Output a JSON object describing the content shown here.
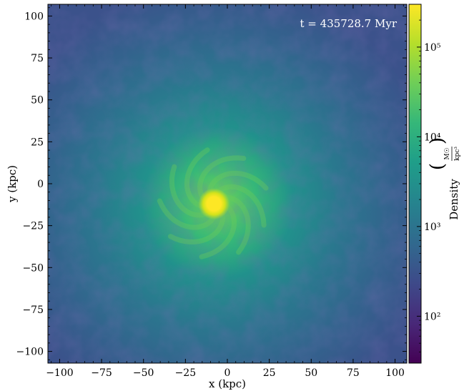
{
  "chart_data": {
    "type": "heatmap",
    "annotation": "t = 435728.7 Myr",
    "xlabel": "x  (kpc)",
    "ylabel": "y  (kpc)",
    "xlim": [
      -107,
      107
    ],
    "ylim": [
      -107,
      107
    ],
    "xticks": [
      -100,
      -75,
      -50,
      -25,
      0,
      25,
      50,
      75,
      100
    ],
    "yticks": [
      -100,
      -75,
      -50,
      -25,
      0,
      25,
      50,
      75,
      100
    ],
    "xtick_labels": [
      "−100",
      "−75",
      "−50",
      "−25",
      "0",
      "25",
      "50",
      "75",
      "100"
    ],
    "ytick_labels": [
      "−100",
      "−75",
      "−50",
      "−25",
      "0",
      "25",
      "50",
      "75",
      "100"
    ],
    "colorbar": {
      "label": "Density",
      "unit_numerator": "M☉",
      "unit_denominator": "kpc³",
      "scale": "log",
      "range": [
        30,
        300000
      ],
      "ticks": [
        100,
        1000,
        10000,
        100000
      ],
      "tick_labels": [
        "10²",
        "10³",
        "10⁴",
        "10⁵"
      ],
      "colormap": "viridis"
    },
    "peak": {
      "x": -8,
      "y": -12,
      "density": 250000
    },
    "background_density": 150,
    "grid": false
  },
  "colors": {
    "viridis": [
      "#440154",
      "#482878",
      "#3e4989",
      "#31688e",
      "#26828e",
      "#1f9e89",
      "#35b779",
      "#6ece58",
      "#b5de2b",
      "#fde725"
    ]
  }
}
